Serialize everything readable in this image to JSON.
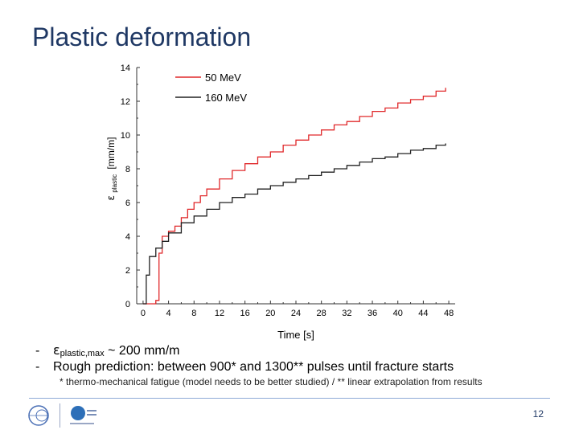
{
  "slide": {
    "title": "Plastic deformation",
    "bullets": [
      {
        "dash": "-",
        "eps_symbol": "ε",
        "eps_sub": "plastic,max",
        "eps_rest": " ~ 200 mm/m"
      },
      {
        "dash": "-",
        "text": "Rough prediction: between 900* and 1300** pulses until fracture starts"
      }
    ],
    "footnote": "* thermo-mechanical fatigue (model needs to be better studied)  /  ** linear extrapolation from results",
    "page_number": "12"
  },
  "chart_data": {
    "type": "line",
    "xlabel": "Time [s]",
    "ylabel_symbol": "ε",
    "ylabel_sub": "plastic",
    "ylabel_unit": "[mm/m]",
    "xlim": [
      -1,
      49
    ],
    "ylim": [
      0,
      14
    ],
    "xticks": [
      0,
      4,
      8,
      12,
      16,
      20,
      24,
      28,
      32,
      36,
      40,
      44,
      48
    ],
    "yticks": [
      0,
      2,
      4,
      6,
      8,
      10,
      12,
      14
    ],
    "legend_position": "top-left",
    "series": [
      {
        "name": "50 MeV",
        "color": "#e0282a",
        "points": [
          [
            0,
            0
          ],
          [
            2,
            0.2
          ],
          [
            2.5,
            3.0
          ],
          [
            3,
            4.0
          ],
          [
            4,
            4.3
          ],
          [
            5,
            4.6
          ],
          [
            6,
            5.1
          ],
          [
            7,
            5.6
          ],
          [
            8,
            6.0
          ],
          [
            9,
            6.4
          ],
          [
            10,
            6.8
          ],
          [
            12,
            7.4
          ],
          [
            14,
            7.9
          ],
          [
            16,
            8.3
          ],
          [
            18,
            8.7
          ],
          [
            20,
            9.0
          ],
          [
            22,
            9.4
          ],
          [
            24,
            9.7
          ],
          [
            26,
            10.0
          ],
          [
            28,
            10.3
          ],
          [
            30,
            10.6
          ],
          [
            32,
            10.8
          ],
          [
            34,
            11.1
          ],
          [
            36,
            11.4
          ],
          [
            38,
            11.6
          ],
          [
            40,
            11.9
          ],
          [
            42,
            12.1
          ],
          [
            44,
            12.3
          ],
          [
            46,
            12.6
          ],
          [
            47.5,
            12.8
          ]
        ]
      },
      {
        "name": "160 MeV",
        "color": "#222222",
        "points": [
          [
            0,
            0
          ],
          [
            0.5,
            1.7
          ],
          [
            1,
            2.8
          ],
          [
            2,
            3.3
          ],
          [
            3,
            3.7
          ],
          [
            4,
            4.2
          ],
          [
            6,
            4.8
          ],
          [
            8,
            5.2
          ],
          [
            10,
            5.6
          ],
          [
            12,
            6.0
          ],
          [
            14,
            6.3
          ],
          [
            16,
            6.5
          ],
          [
            18,
            6.8
          ],
          [
            20,
            7.0
          ],
          [
            22,
            7.2
          ],
          [
            24,
            7.4
          ],
          [
            26,
            7.6
          ],
          [
            28,
            7.8
          ],
          [
            30,
            8.0
          ],
          [
            32,
            8.2
          ],
          [
            34,
            8.4
          ],
          [
            36,
            8.6
          ],
          [
            38,
            8.7
          ],
          [
            40,
            8.9
          ],
          [
            42,
            9.1
          ],
          [
            44,
            9.2
          ],
          [
            46,
            9.4
          ],
          [
            47.5,
            9.5
          ]
        ]
      }
    ]
  }
}
